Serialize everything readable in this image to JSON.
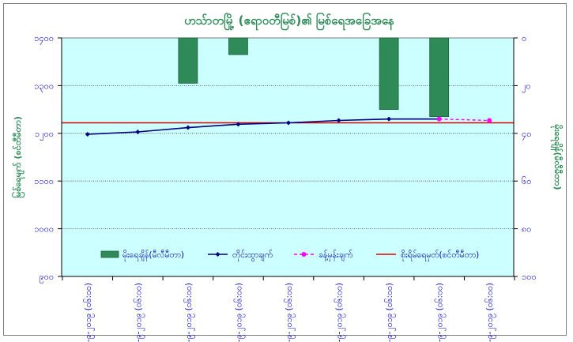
{
  "chart_data": {
    "type": "bar+line",
    "title": "ဟသ်ာတမြို့ (ဧရာဝတီမြစ်)၏ မြစ်ရေအခြေအနေ",
    "ylabel_left": "မြစ်ရေမျက် (စင်တီမီတာ)",
    "ylabel_right": "မိုးရေချိန်(မီလီမီတာ)",
    "left_axis": {
      "min": 900,
      "max": 1400,
      "ticks": [
        900,
        1000,
        1100,
        1200,
        1300,
        1400
      ],
      "tick_labels": [
        "၉၀၀",
        "၁၀၀၀",
        "၁၁၀၀",
        "၁၂၀၀",
        "၁၃၀၀",
        "၁၄၀၀"
      ]
    },
    "right_axis": {
      "min": 0,
      "max": 100,
      "inverted": true,
      "ticks": [
        0,
        20,
        40,
        60,
        80,
        100
      ],
      "tick_labels": [
        "၀",
        "၂၀",
        "၄၀",
        "၆၀",
        "၈၀",
        "၁၀၀"
      ]
    },
    "categories": [
      "၁၃-၉-၂၀၁၉ (၀၆:၀၀)",
      "၁၄-၉-၂၀၁၉ (၀၆:၀၀)",
      "၁၅-၉-၂၀၁၉ (၀၆:၀၀)",
      "၁၆-၉-၂၀၁၉ (၀၆:၀၀)",
      "၁၇-၉-၂၀၁၉ (၀၆:၀၀)",
      "၁၈-၉-၂၀၁၉ (၀၆:၀၀)",
      "၁၉-၉-၂၀၁၉ (၀၆:၀၀)",
      "၂၀-၉-၂၀၁၉ (၀၆:၀၀)",
      "၂၁-၉-၂၀၁၉ (၀၆:၀၀)"
    ],
    "series": [
      {
        "name": "မိုးရေချိန်(မီလီမီတာ)",
        "kind": "bar",
        "axis": "right",
        "color": "#2e8b57",
        "values": [
          0,
          0,
          19,
          7,
          0,
          0,
          30,
          33,
          0
        ]
      },
      {
        "name": "တိုင်းထွာချက်",
        "kind": "line",
        "axis": "left",
        "color": "#000080",
        "values": [
          1198,
          1203,
          1212,
          1219,
          1222,
          1227,
          1230,
          1230,
          null
        ]
      },
      {
        "name": "ခန့်မှန်းချက်",
        "kind": "line",
        "axis": "left",
        "color": "#ff00ff",
        "dashed": true,
        "values": [
          null,
          null,
          null,
          null,
          null,
          null,
          null,
          1230,
          1227
        ]
      },
      {
        "name": "စိုးရိမ်ရေမှတ်(စင်တီမီတာ)",
        "kind": "hline",
        "axis": "left",
        "color": "#dd0000",
        "value": 1222
      }
    ],
    "legend_position": "bottom-inside",
    "grid": true
  }
}
